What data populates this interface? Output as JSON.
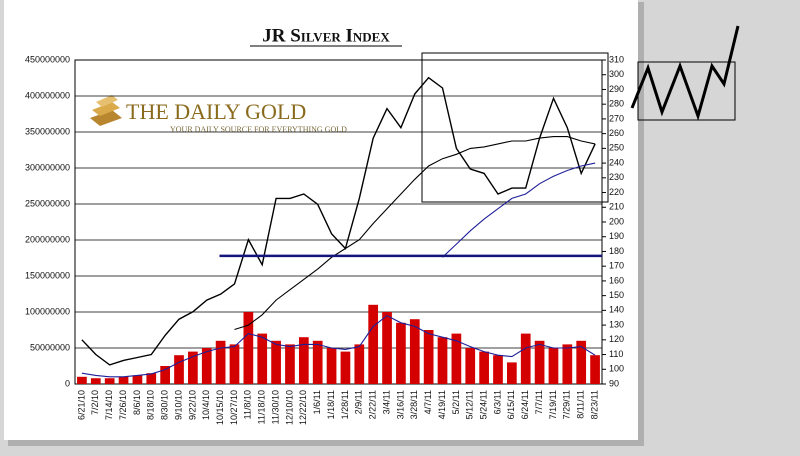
{
  "chart_data": {
    "type": "combo",
    "title": "JR Silver Index",
    "logo_title": "THE DAILY GOLD",
    "logo_subtitle": "YOUR DAILY SOURCE FOR EVERYTHING GOLD",
    "categories": [
      "6/21/10",
      "7/2/10",
      "7/14/10",
      "7/26/10",
      "8/6/10",
      "8/18/10",
      "8/30/10",
      "9/10/10",
      "9/22/10",
      "10/4/10",
      "10/15/10",
      "10/27/10",
      "11/8/10",
      "11/18/10",
      "11/30/10",
      "12/10/10",
      "12/22/10",
      "1/6/11",
      "1/18/11",
      "1/28/11",
      "2/9/11",
      "2/22/11",
      "3/4/11",
      "3/16/11",
      "3/28/11",
      "4/7/11",
      "4/19/11",
      "5/2/11",
      "5/12/11",
      "5/24/11",
      "6/3/11",
      "6/15/11",
      "6/24/11",
      "7/7/11",
      "7/19/11",
      "7/29/11",
      "8/11/11",
      "8/23/11"
    ],
    "series": [
      {
        "type": "bar",
        "color": "#d40000",
        "values": [
          10000000,
          8000000,
          8000000,
          10000000,
          12000000,
          15000000,
          25000000,
          40000000,
          45000000,
          50000000,
          60000000,
          55000000,
          100000000,
          70000000,
          60000000,
          55000000,
          65000000,
          60000000,
          50000000,
          45000000,
          55000000,
          110000000,
          100000000,
          85000000,
          90000000,
          75000000,
          65000000,
          70000000,
          50000000,
          45000000,
          40000000,
          30000000,
          70000000,
          60000000,
          50000000,
          55000000,
          60000000,
          40000000
        ]
      },
      {
        "type": "line",
        "color": "#1f1f9a",
        "values": [
          15000000,
          12000000,
          10000000,
          10000000,
          12000000,
          14000000,
          20000000,
          30000000,
          38000000,
          45000000,
          50000000,
          52000000,
          70000000,
          65000000,
          55000000,
          52000000,
          55000000,
          55000000,
          50000000,
          48000000,
          52000000,
          80000000,
          95000000,
          85000000,
          80000000,
          70000000,
          65000000,
          60000000,
          52000000,
          45000000,
          40000000,
          38000000,
          50000000,
          55000000,
          50000000,
          50000000,
          52000000,
          40000000
        ]
      },
      {
        "type": "line",
        "axis": "y2",
        "color": "#000000",
        "values": [
          120,
          110,
          103,
          106,
          108,
          110,
          123,
          134,
          139,
          147,
          151,
          158,
          188,
          171,
          216,
          216,
          219,
          212,
          192,
          182,
          216,
          257,
          277,
          264,
          287,
          298,
          291,
          250,
          236,
          233,
          219,
          223,
          223,
          257,
          284,
          264,
          233,
          253
        ]
      },
      {
        "type": "line",
        "axis": "y2",
        "color": "#000000",
        "values": [
          null,
          null,
          null,
          null,
          null,
          null,
          null,
          null,
          null,
          null,
          null,
          127,
          130,
          137,
          147,
          154,
          161,
          168,
          176,
          182,
          188,
          199,
          209,
          219,
          229,
          238,
          243,
          246,
          250,
          251,
          253,
          255,
          255,
          257,
          258,
          258,
          255,
          253
        ]
      },
      {
        "type": "line",
        "axis": "y2",
        "color": "#1f1f9a",
        "values": [
          null,
          null,
          null,
          null,
          null,
          null,
          null,
          null,
          null,
          null,
          null,
          null,
          null,
          null,
          null,
          null,
          null,
          null,
          null,
          null,
          null,
          null,
          null,
          null,
          null,
          null,
          176,
          185,
          194,
          202,
          209,
          216,
          219,
          226,
          231,
          235,
          238,
          240
        ]
      }
    ],
    "hline": {
      "value": 177,
      "axis": "y2",
      "color": "#14147a"
    },
    "ylim": [
      0,
      450000000
    ],
    "yticks": [
      0,
      50000000,
      100000000,
      150000000,
      200000000,
      250000000,
      300000000,
      350000000,
      400000000,
      450000000
    ],
    "y2lim": [
      90,
      310
    ],
    "y2ticks": [
      90,
      100,
      110,
      120,
      130,
      140,
      150,
      160,
      170,
      180,
      190,
      200,
      210,
      220,
      230,
      240,
      250,
      260,
      270,
      280,
      290,
      300,
      310
    ],
    "grid": true
  }
}
